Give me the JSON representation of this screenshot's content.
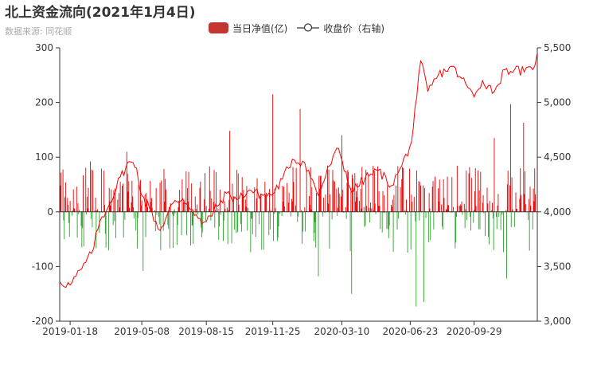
{
  "colors": {
    "positive": "#ee0000",
    "negative": "#2e9f2e",
    "line": "#ff0000",
    "legend_bar": "#c23531",
    "axis": "#333333",
    "grid": "#cccccc"
  },
  "chart_data": {
    "type": "bar+line",
    "title": "北上资金流向(2021年1月4日)",
    "subtitle": "数据来源: 同花顺",
    "legend": {
      "position": "top-center",
      "items": [
        "当日净值(亿)",
        "收盘价（右轴)"
      ]
    },
    "x_ticks": [
      "2019-01-18",
      "2019-05-08",
      "2019-08-15",
      "2019-11-25",
      "2020-03-10",
      "2020-06-23",
      "2020-09-29"
    ],
    "x_start": "2019-01-02",
    "x_end": "2021-01-04",
    "y_left": {
      "min": -200,
      "max": 300,
      "ticks": [
        "-200",
        "-100",
        "0",
        "100",
        "200",
        "300"
      ]
    },
    "y_right": {
      "min": 3000,
      "max": 5500,
      "ticks": [
        "3,000",
        "3,500",
        "4,000",
        "4,500",
        "5,000",
        "5,500"
      ]
    },
    "grid": false,
    "series": [
      {
        "name": "当日净值(亿)",
        "type": "bar",
        "axis": "left",
        "note": "daily net northbound flow, one bar per trading day",
        "anchors": [
          {
            "date": "2019-01-02",
            "value": 60
          },
          {
            "date": "2019-02-18",
            "value": 92
          },
          {
            "date": "2019-04-15",
            "value": 110
          },
          {
            "date": "2019-04-28",
            "value": -110
          },
          {
            "date": "2019-05-10",
            "value": -108
          },
          {
            "date": "2019-09-20",
            "value": 148
          },
          {
            "date": "2019-11-25",
            "value": 215
          },
          {
            "date": "2020-01-06",
            "value": 188
          },
          {
            "date": "2020-02-03",
            "value": -118
          },
          {
            "date": "2020-03-10",
            "value": 140
          },
          {
            "date": "2020-03-25",
            "value": -150
          },
          {
            "date": "2020-06-20",
            "value": 152
          },
          {
            "date": "2020-07-02",
            "value": -173
          },
          {
            "date": "2020-07-14",
            "value": -165
          },
          {
            "date": "2020-10-30",
            "value": 135
          },
          {
            "date": "2020-11-18",
            "value": -122
          },
          {
            "date": "2020-11-24",
            "value": 197
          },
          {
            "date": "2020-12-14",
            "value": 163
          }
        ]
      },
      {
        "name": "收盘价（右轴)",
        "type": "line",
        "axis": "right",
        "points": [
          {
            "date": "2019-01-02",
            "value": 3360
          },
          {
            "date": "2019-01-18",
            "value": 3330
          },
          {
            "date": "2019-02-05",
            "value": 3480
          },
          {
            "date": "2019-02-20",
            "value": 3620
          },
          {
            "date": "2019-03-05",
            "value": 3920
          },
          {
            "date": "2019-03-20",
            "value": 4080
          },
          {
            "date": "2019-04-05",
            "value": 4320
          },
          {
            "date": "2019-04-19",
            "value": 4460
          },
          {
            "date": "2019-04-30",
            "value": 4400
          },
          {
            "date": "2019-05-08",
            "value": 4150
          },
          {
            "date": "2019-05-20",
            "value": 4030
          },
          {
            "date": "2019-06-05",
            "value": 3830
          },
          {
            "date": "2019-06-25",
            "value": 4080
          },
          {
            "date": "2019-07-10",
            "value": 4120
          },
          {
            "date": "2019-07-25",
            "value": 4020
          },
          {
            "date": "2019-08-08",
            "value": 3890
          },
          {
            "date": "2019-08-15",
            "value": 3910
          },
          {
            "date": "2019-09-01",
            "value": 4050
          },
          {
            "date": "2019-09-15",
            "value": 4170
          },
          {
            "date": "2019-10-01",
            "value": 4110
          },
          {
            "date": "2019-10-20",
            "value": 4200
          },
          {
            "date": "2019-11-10",
            "value": 4150
          },
          {
            "date": "2019-11-25",
            "value": 4160
          },
          {
            "date": "2019-12-10",
            "value": 4300
          },
          {
            "date": "2019-12-25",
            "value": 4480
          },
          {
            "date": "2020-01-13",
            "value": 4450
          },
          {
            "date": "2020-02-03",
            "value": 4150
          },
          {
            "date": "2020-02-20",
            "value": 4420
          },
          {
            "date": "2020-03-05",
            "value": 4580
          },
          {
            "date": "2020-03-25",
            "value": 4180
          },
          {
            "date": "2020-04-15",
            "value": 4310
          },
          {
            "date": "2020-05-05",
            "value": 4380
          },
          {
            "date": "2020-05-25",
            "value": 4240
          },
          {
            "date": "2020-06-10",
            "value": 4420
          },
          {
            "date": "2020-06-25",
            "value": 4640
          },
          {
            "date": "2020-07-03",
            "value": 5050
          },
          {
            "date": "2020-07-09",
            "value": 5380
          },
          {
            "date": "2020-07-20",
            "value": 5100
          },
          {
            "date": "2020-08-05",
            "value": 5250
          },
          {
            "date": "2020-08-25",
            "value": 5330
          },
          {
            "date": "2020-09-10",
            "value": 5220
          },
          {
            "date": "2020-09-29",
            "value": 5050
          },
          {
            "date": "2020-10-12",
            "value": 5200
          },
          {
            "date": "2020-10-30",
            "value": 5100
          },
          {
            "date": "2020-11-15",
            "value": 5300
          },
          {
            "date": "2020-11-30",
            "value": 5300
          },
          {
            "date": "2020-12-15",
            "value": 5280
          },
          {
            "date": "2020-12-28",
            "value": 5300
          },
          {
            "date": "2021-01-04",
            "value": 5450
          }
        ]
      }
    ]
  }
}
